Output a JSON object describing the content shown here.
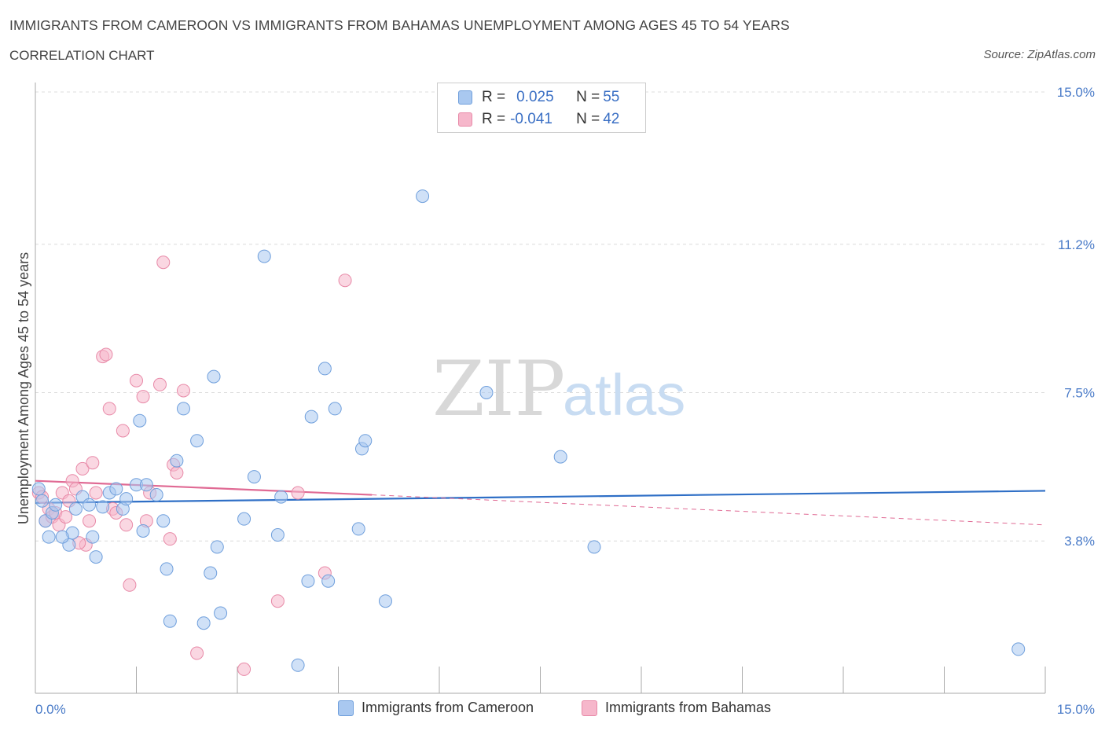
{
  "header": {
    "title": "IMMIGRANTS FROM CAMEROON VS IMMIGRANTS FROM BAHAMAS UNEMPLOYMENT AMONG AGES 45 TO 54 YEARS",
    "subtitle": "CORRELATION CHART",
    "source": "Source: ZipAtlas.com"
  },
  "watermark": {
    "zip": "ZIP",
    "atlas": "atlas"
  },
  "legend": {
    "cameroon": {
      "r_label": "R = ",
      "r_value": "0.025",
      "n_label": "N = ",
      "n_value": "55"
    },
    "bahamas": {
      "r_label": "R = ",
      "r_value": "-0.041",
      "n_label": "N = ",
      "n_value": "42"
    }
  },
  "bottom_legend": {
    "cameroon": "Immigrants from Cameroon",
    "bahamas": "Immigrants from Bahamas"
  },
  "colors": {
    "cameroon_fill": "#a9c8f0",
    "cameroon_stroke": "#6f9fdc",
    "cameroon_line": "#2f6fc6",
    "bahamas_fill": "#f6b7cb",
    "bahamas_stroke": "#e88aa8",
    "bahamas_line": "#e06a94"
  },
  "chart_data": {
    "type": "scatter",
    "title": "IMMIGRANTS FROM CAMEROON VS IMMIGRANTS FROM BAHAMAS UNEMPLOYMENT AMONG AGES 45 TO 54 YEARS",
    "subtitle": "CORRELATION CHART",
    "xlabel": "",
    "ylabel": "Unemployment Among Ages 45 to 54 years",
    "xlim": [
      0,
      15
    ],
    "ylim": [
      0,
      15
    ],
    "x_tick_labels": [
      "0.0%",
      "15.0%"
    ],
    "y_ticks": [
      3.8,
      7.5,
      11.2,
      15.0
    ],
    "y_tick_labels": [
      "3.8%",
      "7.5%",
      "11.2%",
      "15.0%"
    ],
    "grid": true,
    "legend_position": "top-center",
    "series": [
      {
        "name": "Immigrants from Cameroon",
        "R": 0.025,
        "N": 55,
        "trend": {
          "x": [
            0,
            15
          ],
          "y": [
            4.75,
            5.05
          ],
          "extrapolated_to": 15
        },
        "points": [
          [
            0.05,
            5.1
          ],
          [
            0.1,
            4.8
          ],
          [
            0.15,
            4.3
          ],
          [
            0.2,
            3.9
          ],
          [
            0.25,
            4.5
          ],
          [
            0.3,
            4.7
          ],
          [
            0.5,
            3.7
          ],
          [
            0.55,
            4.0
          ],
          [
            0.7,
            4.9
          ],
          [
            0.8,
            4.7
          ],
          [
            0.85,
            3.9
          ],
          [
            0.9,
            3.4
          ],
          [
            1.0,
            4.65
          ],
          [
            1.1,
            5.0
          ],
          [
            1.2,
            5.1
          ],
          [
            1.3,
            4.6
          ],
          [
            1.35,
            4.85
          ],
          [
            1.5,
            5.2
          ],
          [
            1.55,
            6.8
          ],
          [
            1.6,
            4.05
          ],
          [
            1.65,
            5.2
          ],
          [
            1.8,
            4.95
          ],
          [
            1.9,
            4.3
          ],
          [
            1.95,
            3.1
          ],
          [
            2.0,
            1.8
          ],
          [
            2.1,
            5.8
          ],
          [
            2.2,
            7.1
          ],
          [
            2.4,
            6.3
          ],
          [
            2.5,
            1.75
          ],
          [
            2.6,
            3.0
          ],
          [
            2.65,
            7.9
          ],
          [
            2.7,
            3.65
          ],
          [
            2.75,
            2.0
          ],
          [
            3.1,
            4.35
          ],
          [
            3.25,
            5.4
          ],
          [
            3.4,
            10.9
          ],
          [
            3.6,
            3.95
          ],
          [
            3.65,
            4.9
          ],
          [
            3.9,
            0.7
          ],
          [
            4.05,
            2.8
          ],
          [
            4.1,
            6.9
          ],
          [
            4.3,
            8.1
          ],
          [
            4.35,
            2.8
          ],
          [
            4.45,
            7.1
          ],
          [
            4.8,
            4.1
          ],
          [
            4.85,
            6.1
          ],
          [
            4.9,
            6.3
          ],
          [
            5.2,
            2.3
          ],
          [
            5.75,
            12.4
          ],
          [
            6.7,
            7.5
          ],
          [
            7.8,
            5.9
          ],
          [
            8.3,
            3.65
          ],
          [
            14.6,
            1.1
          ],
          [
            0.4,
            3.9
          ],
          [
            0.6,
            4.6
          ]
        ]
      },
      {
        "name": "Immigrants from Bahamas",
        "R": -0.041,
        "N": 42,
        "trend": {
          "x": [
            0,
            5
          ],
          "y": [
            5.3,
            4.95
          ],
          "extrapolated_to": 15,
          "y_at_15": 4.2
        },
        "points": [
          [
            0.05,
            5.0
          ],
          [
            0.1,
            4.9
          ],
          [
            0.15,
            4.3
          ],
          [
            0.2,
            4.6
          ],
          [
            0.25,
            4.4
          ],
          [
            0.3,
            4.5
          ],
          [
            0.35,
            4.2
          ],
          [
            0.4,
            5.0
          ],
          [
            0.45,
            4.4
          ],
          [
            0.5,
            4.8
          ],
          [
            0.55,
            5.3
          ],
          [
            0.6,
            5.1
          ],
          [
            0.7,
            5.6
          ],
          [
            0.75,
            3.7
          ],
          [
            0.8,
            4.3
          ],
          [
            0.85,
            5.75
          ],
          [
            0.9,
            5.0
          ],
          [
            1.0,
            8.4
          ],
          [
            1.05,
            8.45
          ],
          [
            1.1,
            7.1
          ],
          [
            1.15,
            4.6
          ],
          [
            1.2,
            4.5
          ],
          [
            1.3,
            6.55
          ],
          [
            1.35,
            4.2
          ],
          [
            1.4,
            2.7
          ],
          [
            1.5,
            7.8
          ],
          [
            1.6,
            7.4
          ],
          [
            1.65,
            4.3
          ],
          [
            1.7,
            5.0
          ],
          [
            1.85,
            7.7
          ],
          [
            1.9,
            10.75
          ],
          [
            2.0,
            3.85
          ],
          [
            2.05,
            5.7
          ],
          [
            2.1,
            5.5
          ],
          [
            2.2,
            7.55
          ],
          [
            2.4,
            1.0
          ],
          [
            3.1,
            0.6
          ],
          [
            3.6,
            2.3
          ],
          [
            3.9,
            5.0
          ],
          [
            4.3,
            3.0
          ],
          [
            4.6,
            10.3
          ],
          [
            0.65,
            3.75
          ]
        ]
      }
    ]
  }
}
